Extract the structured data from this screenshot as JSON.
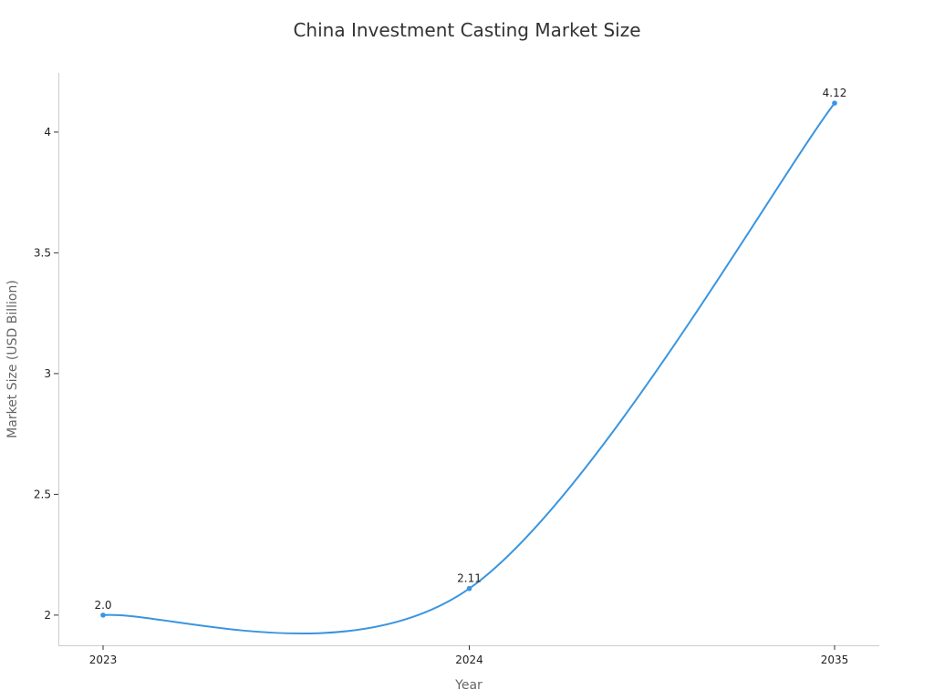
{
  "chart_data": {
    "type": "line",
    "title": "China Investment Casting Market Size",
    "xlabel": "Year",
    "ylabel": "Market Size (USD Billion)",
    "categories": [
      "2023",
      "2024",
      "2035"
    ],
    "series": [
      {
        "values": [
          2.0,
          2.11,
          4.12
        ],
        "labels": [
          "2.0",
          "2.11",
          "4.12"
        ],
        "color": "#3a95e0"
      }
    ],
    "yticks": [
      2,
      2.5,
      3,
      3.5,
      4
    ],
    "ytick_labels": [
      "2",
      "2.5",
      "3",
      "3.5",
      "4"
    ],
    "ylim": [
      1.875,
      4.245
    ],
    "grid": false,
    "smooth": true
  }
}
